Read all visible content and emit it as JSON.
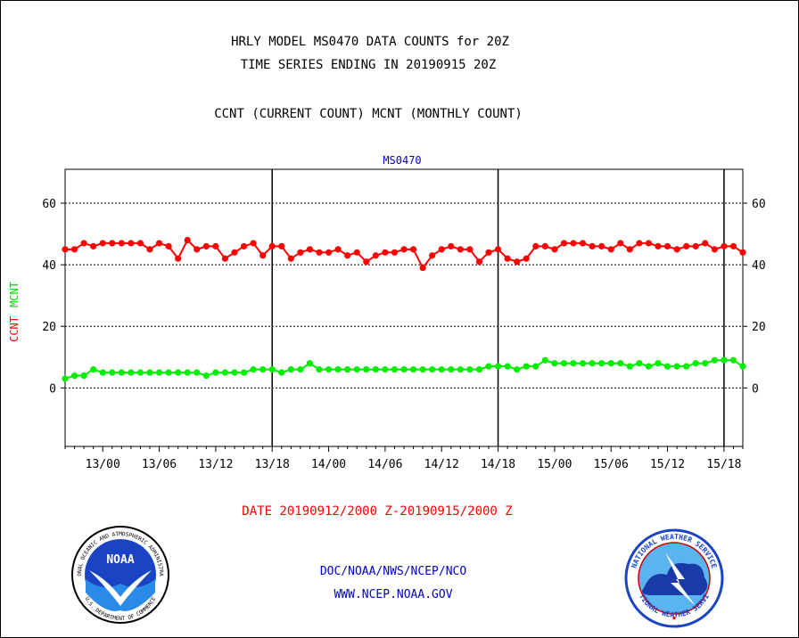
{
  "header": {
    "title_line1": "HRLY MODEL MS0470 DATA COUNTS for 20Z",
    "title_line2": "TIME SERIES ENDING IN 20190915 20Z",
    "subtitle": "CCNT (CURRENT COUNT) MCNT (MONTHLY COUNT)"
  },
  "footer": {
    "date_range": "DATE 20190912/2000 Z-20190915/2000 Z",
    "org": "DOC/NOAA/NWS/NCEP/NCO",
    "url": "WWW.NCEP.NOAA.GOV"
  },
  "logos": {
    "noaa": "NOAA",
    "noaa_ring_top": "NATIONAL OCEANIC AND ATMOSPHERIC ADMINISTRATION",
    "noaa_ring_bottom": "U.S. DEPARTMENT OF COMMERCE",
    "nws_ring_top": "NATIONAL WEATHER SERVICE",
    "nws_ring_bottom": "NATIONAL WEATHER SERVICE"
  },
  "chart_data": {
    "type": "line",
    "title": "MS0470",
    "xlabel": "DATE 20190912/2000 Z-20190915/2000 Z",
    "ylabel_parts": [
      {
        "text": "CCNT",
        "color": "#ff0000"
      },
      {
        "text": "MCNT",
        "color": "#00dd00"
      }
    ],
    "ylim": [
      -19,
      71
    ],
    "yticks": [
      0,
      20,
      40,
      60
    ],
    "x_start_hour": 0,
    "x_end_hour": 72,
    "xticks": [
      {
        "hour": 4,
        "label": "13/00"
      },
      {
        "hour": 10,
        "label": "13/06"
      },
      {
        "hour": 16,
        "label": "13/12"
      },
      {
        "hour": 22,
        "label": "13/18"
      },
      {
        "hour": 28,
        "label": "14/00"
      },
      {
        "hour": 34,
        "label": "14/06"
      },
      {
        "hour": 40,
        "label": "14/12"
      },
      {
        "hour": 46,
        "label": "14/18"
      },
      {
        "hour": 52,
        "label": "15/00"
      },
      {
        "hour": 58,
        "label": "15/06"
      },
      {
        "hour": 64,
        "label": "15/12"
      },
      {
        "hour": 70,
        "label": "15/18"
      }
    ],
    "day_separators": [
      22,
      46,
      70
    ],
    "grid": true,
    "series": [
      {
        "name": "CCNT",
        "color": "#ff0000",
        "values": [
          45,
          45,
          47,
          46,
          47,
          47,
          47,
          47,
          47,
          45,
          47,
          46,
          42,
          48,
          45,
          46,
          46,
          42,
          44,
          46,
          47,
          43,
          46,
          46,
          42,
          44,
          45,
          44,
          44,
          45,
          43,
          44,
          41,
          43,
          44,
          44,
          45,
          45,
          39,
          43,
          45,
          46,
          45,
          45,
          41,
          44,
          45,
          42,
          41,
          42,
          46,
          46,
          45,
          47,
          47,
          47,
          46,
          46,
          45,
          47,
          45,
          47,
          47,
          46,
          46,
          45,
          46,
          46,
          47,
          45,
          46,
          46,
          44
        ]
      },
      {
        "name": "MCNT",
        "color": "#00ee00",
        "values": [
          3,
          4,
          4,
          6,
          5,
          5,
          5,
          5,
          5,
          5,
          5,
          5,
          5,
          5,
          5,
          4,
          5,
          5,
          5,
          5,
          6,
          6,
          6,
          5,
          6,
          6,
          8,
          6,
          6,
          6,
          6,
          6,
          6,
          6,
          6,
          6,
          6,
          6,
          6,
          6,
          6,
          6,
          6,
          6,
          6,
          7,
          7,
          7,
          6,
          7,
          7,
          9,
          8,
          8,
          8,
          8,
          8,
          8,
          8,
          8,
          7,
          8,
          7,
          8,
          7,
          7,
          7,
          8,
          8,
          9,
          9,
          9,
          7
        ]
      }
    ]
  }
}
